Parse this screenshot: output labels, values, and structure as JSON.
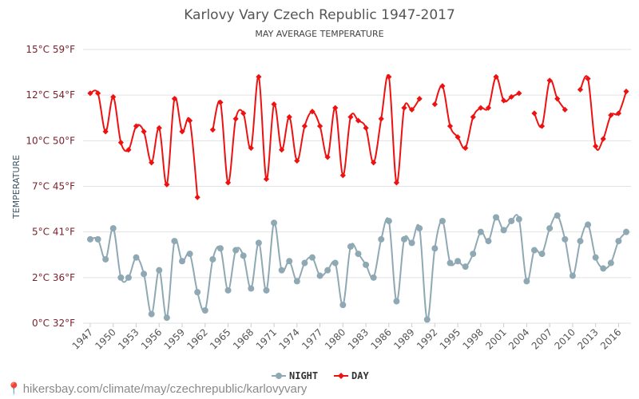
{
  "chart_data": {
    "type": "line",
    "title": "Karlovy Vary Czech Republic 1947-2017",
    "subtitle": "MAY AVERAGE TEMPERATURE",
    "xlabel": "",
    "ylabel": "TEMPERATURE",
    "x": [
      1947,
      1948,
      1949,
      1950,
      1951,
      1952,
      1953,
      1954,
      1955,
      1956,
      1957,
      1958,
      1959,
      1960,
      1961,
      1962,
      1963,
      1964,
      1965,
      1966,
      1967,
      1968,
      1969,
      1970,
      1971,
      1972,
      1973,
      1974,
      1975,
      1976,
      1977,
      1978,
      1979,
      1980,
      1981,
      1982,
      1983,
      1984,
      1985,
      1986,
      1987,
      1988,
      1989,
      1990,
      1991,
      1992,
      1993,
      1994,
      1995,
      1996,
      1997,
      1998,
      1999,
      2000,
      2001,
      2002,
      2003,
      2004,
      2005,
      2006,
      2007,
      2008,
      2009,
      2010,
      2011,
      2012,
      2013,
      2014,
      2015,
      2016,
      2017
    ],
    "xticks": [
      1947,
      1950,
      1953,
      1956,
      1959,
      1962,
      1965,
      1968,
      1971,
      1974,
      1977,
      1980,
      1983,
      1986,
      1989,
      1992,
      1995,
      1998,
      2001,
      2004,
      2007,
      2010,
      2013,
      2016
    ],
    "ylim": [
      0,
      15
    ],
    "yticks": [
      {
        "value": 0,
        "label": "0°C 32°F"
      },
      {
        "value": 2.5,
        "label": "2°C 36°F"
      },
      {
        "value": 5,
        "label": "5°C 41°F"
      },
      {
        "value": 7.5,
        "label": "7°C 45°F"
      },
      {
        "value": 10,
        "label": "10°C 50°F"
      },
      {
        "value": 12.5,
        "label": "12°C 54°F"
      },
      {
        "value": 15,
        "label": "15°C 59°F"
      }
    ],
    "series": [
      {
        "name": "NIGHT",
        "color": "#8fa9b4",
        "values": [
          4.6,
          4.6,
          3.5,
          5.2,
          2.5,
          2.5,
          3.6,
          2.7,
          0.5,
          2.9,
          0.3,
          4.5,
          3.4,
          3.8,
          1.7,
          0.7,
          3.5,
          4.1,
          1.8,
          4.0,
          3.7,
          1.9,
          4.4,
          1.8,
          5.5,
          2.9,
          3.4,
          2.3,
          3.3,
          3.6,
          2.6,
          2.9,
          3.3,
          1.0,
          4.2,
          3.8,
          3.2,
          2.5,
          4.6,
          5.6,
          1.2,
          4.6,
          4.4,
          5.2,
          0.2,
          4.1,
          5.6,
          3.3,
          3.4,
          3.1,
          3.8,
          5.0,
          4.5,
          5.8,
          5.1,
          5.6,
          5.7,
          2.3,
          4.0,
          3.8,
          5.2,
          5.9,
          4.6,
          2.6,
          4.5,
          5.4,
          3.6,
          3.0,
          3.3,
          4.5,
          5.0
        ]
      },
      {
        "name": "DAY",
        "color": "#ee1111",
        "values": [
          12.6,
          12.6,
          10.5,
          12.4,
          9.9,
          9.5,
          10.8,
          10.5,
          8.8,
          10.7,
          7.6,
          12.3,
          10.5,
          11.1,
          6.9,
          null,
          10.6,
          12.1,
          7.7,
          11.2,
          11.5,
          9.6,
          13.5,
          7.9,
          12.0,
          9.5,
          11.3,
          8.9,
          10.8,
          11.6,
          10.8,
          9.1,
          11.8,
          8.1,
          11.3,
          11.1,
          10.7,
          8.8,
          11.2,
          13.5,
          7.7,
          11.8,
          11.7,
          12.3,
          null,
          12.0,
          13.0,
          10.8,
          10.2,
          9.6,
          11.3,
          11.8,
          11.8,
          13.5,
          12.2,
          12.4,
          12.6,
          null,
          11.5,
          10.8,
          13.3,
          12.3,
          11.7,
          null,
          12.8,
          13.4,
          9.7,
          10.1,
          11.4,
          11.5,
          12.7
        ]
      }
    ],
    "legend": {
      "position": "bottom-center",
      "items": [
        "NIGHT",
        "DAY"
      ]
    }
  },
  "footer": {
    "pin_icon": "location-pin-icon",
    "text": "hikersbay.com/climate/may/czechrepublic/karlovyvary"
  }
}
